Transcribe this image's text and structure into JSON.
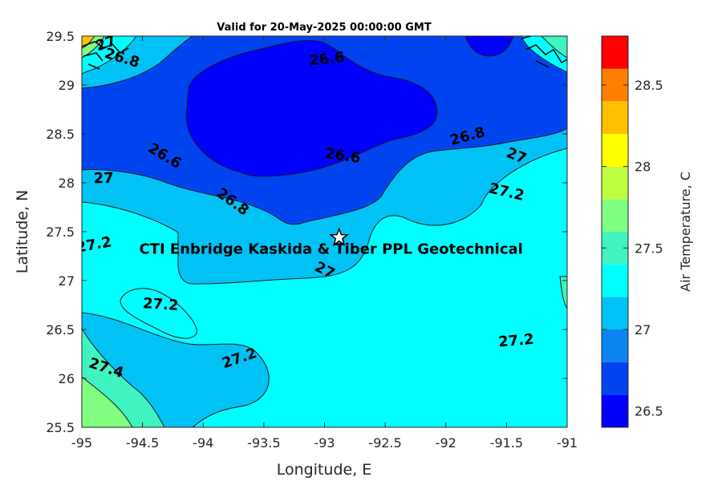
{
  "chart_data": {
    "type": "contour",
    "title": "Valid for 20-May-2025 00:00:00 GMT",
    "xlabel": "Longitude, E",
    "ylabel": "Latitude, N",
    "xlim": [
      -95,
      -91
    ],
    "ylim": [
      25.5,
      29.5
    ],
    "xticks": [
      "-95",
      "-94.5",
      "-94",
      "-93.5",
      "-93",
      "-92.5",
      "-92",
      "-91.5",
      "-91"
    ],
    "yticks": [
      "25.5",
      "26",
      "26.5",
      "27",
      "27.5",
      "28",
      "28.5",
      "29",
      "29.5"
    ],
    "colorbar": {
      "label": "Air Temperature, C",
      "range": [
        26.4,
        28.8
      ],
      "ticks": [
        "26.5",
        "27",
        "27.5",
        "28",
        "28.5"
      ],
      "levels": [
        26.4,
        26.6,
        26.8,
        27.0,
        27.2,
        27.4,
        27.6,
        27.8,
        28.0,
        28.2,
        28.4,
        28.6,
        28.8
      ],
      "colors": [
        "#0000ff",
        "#0044f0",
        "#0a84f0",
        "#00c2f5",
        "#00ffff",
        "#3ff4c0",
        "#80ff80",
        "#c0ff40",
        "#ffff00",
        "#ffc000",
        "#ff8000",
        "#ff4000",
        "#ff0000"
      ]
    },
    "contour_labels": [
      {
        "text": "27",
        "lon": -94.8,
        "lat": 29.42
      },
      {
        "text": "26.8",
        "lon": -94.67,
        "lat": 29.27
      },
      {
        "text": "26.6",
        "lon": -92.98,
        "lat": 29.26
      },
      {
        "text": "26.6",
        "lon": -94.32,
        "lat": 28.27
      },
      {
        "text": "26.6",
        "lon": -92.85,
        "lat": 28.27
      },
      {
        "text": "26.8",
        "lon": -91.82,
        "lat": 28.47
      },
      {
        "text": "27",
        "lon": -91.42,
        "lat": 28.27
      },
      {
        "text": "27",
        "lon": -94.82,
        "lat": 28.04
      },
      {
        "text": "26.8",
        "lon": -93.76,
        "lat": 27.8
      },
      {
        "text": "27.2",
        "lon": -91.5,
        "lat": 27.9
      },
      {
        "text": "27.2",
        "lon": -94.9,
        "lat": 27.36
      },
      {
        "text": "27",
        "lon": -93.0,
        "lat": 27.1
      },
      {
        "text": "27.2",
        "lon": -94.35,
        "lat": 26.75
      },
      {
        "text": "27.2",
        "lon": -93.7,
        "lat": 26.2
      },
      {
        "text": "27.4",
        "lon": -94.8,
        "lat": 26.1
      },
      {
        "text": "27.2",
        "lon": -91.42,
        "lat": 26.38
      }
    ],
    "site": {
      "label": "CTI Enbridge  Kaskida & Tiber PPL Geotechnical",
      "lon": -92.88,
      "lat": 27.44,
      "marker": "star"
    }
  }
}
